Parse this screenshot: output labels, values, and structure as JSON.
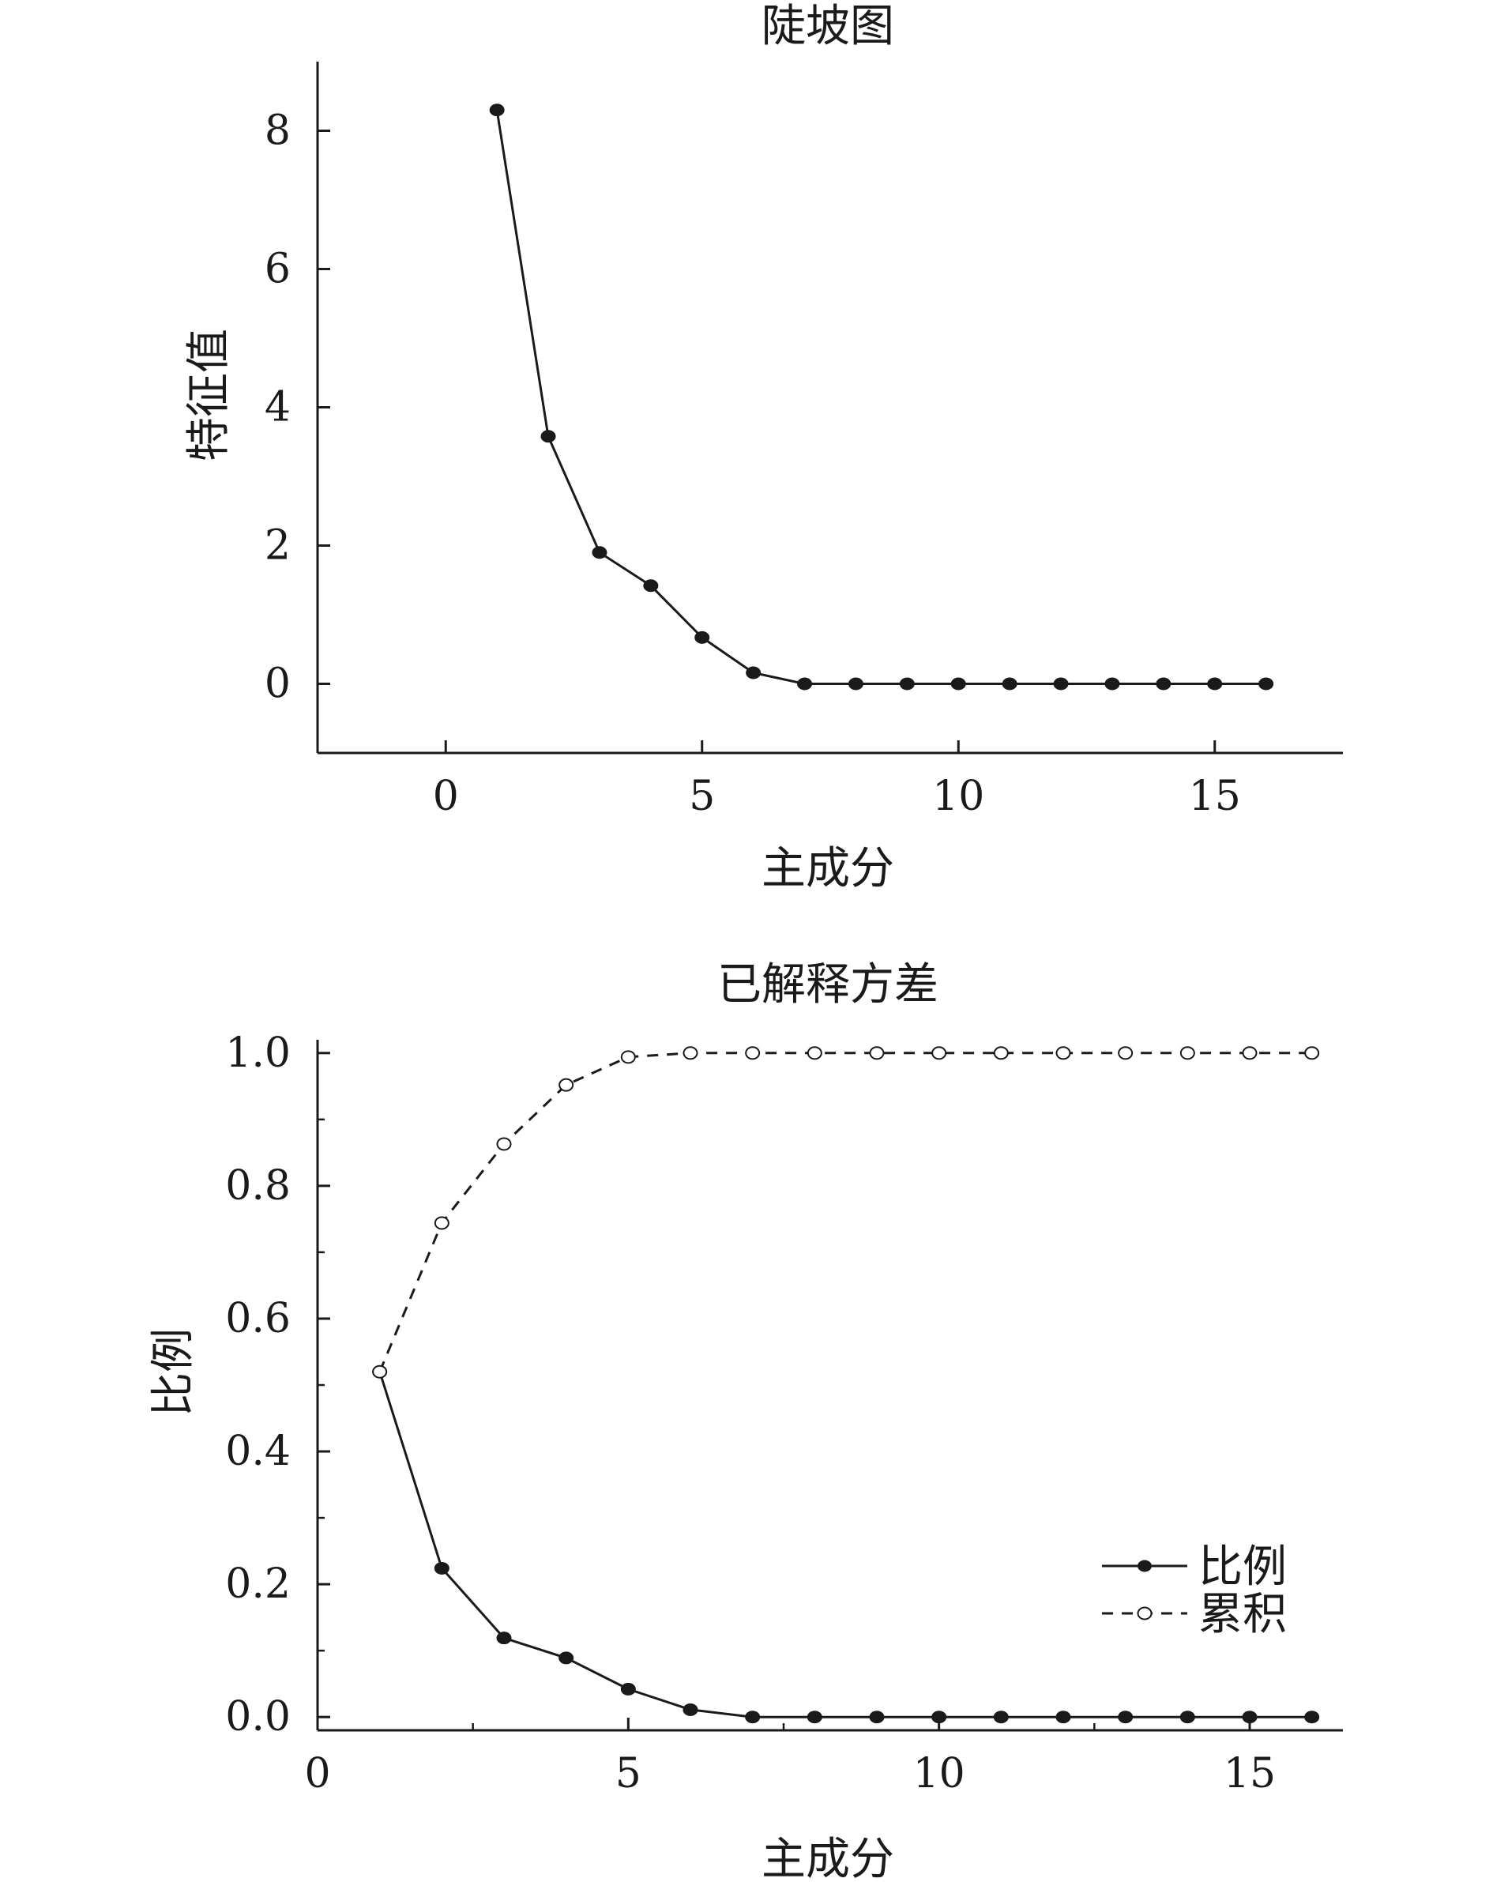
{
  "chart_data": [
    {
      "type": "line",
      "title": "陡坡图",
      "xlabel": "主成分",
      "ylabel": "特征值",
      "xlim": [
        -2.5,
        17.5
      ],
      "ylim": [
        -1,
        9
      ],
      "xticks": [
        0,
        5,
        10,
        15
      ],
      "yticks": [
        0,
        2,
        4,
        6,
        8
      ],
      "grid": false,
      "series": [
        {
          "x": [
            1,
            2,
            3,
            4,
            5,
            6,
            7,
            8,
            9,
            10,
            11,
            12,
            13,
            14,
            15,
            16
          ],
          "values": [
            8.3,
            3.58,
            1.9,
            1.42,
            0.67,
            0.16,
            0,
            0,
            0,
            0,
            0,
            0,
            0,
            0,
            0,
            0
          ],
          "marker": "filled-circle",
          "line": "solid",
          "color": "#1a1a1a"
        }
      ]
    },
    {
      "type": "line",
      "title": "已解释方差",
      "xlabel": "主成分",
      "ylabel": "比例",
      "xlim": [
        0,
        16.5
      ],
      "ylim": [
        -0.02,
        1.02
      ],
      "xticks": [
        0,
        5,
        10,
        15
      ],
      "yticks": [
        0.0,
        0.2,
        0.4,
        0.6,
        0.8,
        1.0
      ],
      "ytick_labels": [
        "0.0",
        "0.2",
        "0.4",
        "0.6",
        "0.8",
        "1.0"
      ],
      "grid": false,
      "legend_position": "bottom-right",
      "series": [
        {
          "name": "比例",
          "x": [
            1,
            2,
            3,
            4,
            5,
            6,
            7,
            8,
            9,
            10,
            11,
            12,
            13,
            14,
            15,
            16
          ],
          "values": [
            0.52,
            0.224,
            0.119,
            0.089,
            0.042,
            0.011,
            0,
            0,
            0,
            0,
            0,
            0,
            0,
            0,
            0,
            0
          ],
          "marker": "filled-circle",
          "line": "solid",
          "color": "#1a1a1a"
        },
        {
          "name": "累积",
          "x": [
            1,
            2,
            3,
            4,
            5,
            6,
            7,
            8,
            9,
            10,
            11,
            12,
            13,
            14,
            15,
            16
          ],
          "values": [
            0.52,
            0.744,
            0.863,
            0.952,
            0.994,
            1.0,
            1.0,
            1.0,
            1.0,
            1.0,
            1.0,
            1.0,
            1.0,
            1.0,
            1.0,
            1.0
          ],
          "marker": "open-circle",
          "line": "dashed",
          "color": "#1a1a1a"
        }
      ]
    }
  ]
}
